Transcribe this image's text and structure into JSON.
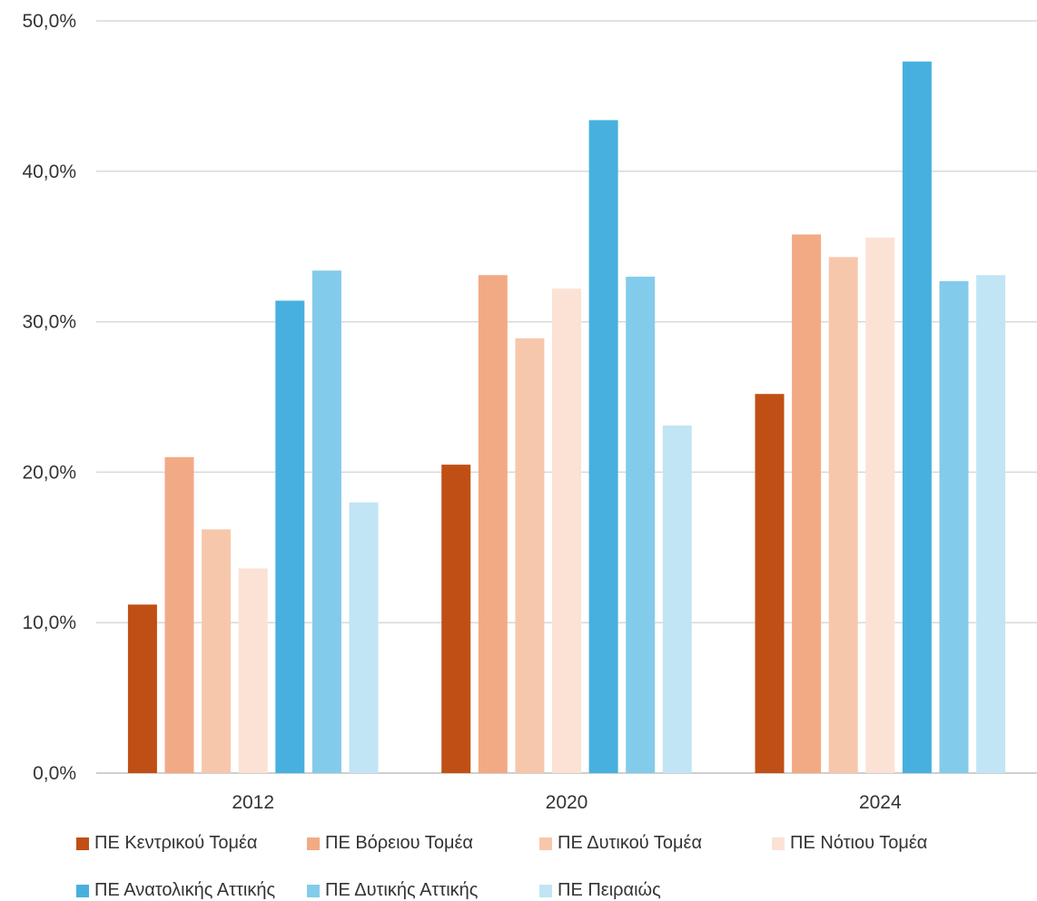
{
  "chart_data": {
    "type": "bar",
    "title": "",
    "xlabel": "",
    "ylabel": "",
    "categories": [
      "2012",
      "2020",
      "2024"
    ],
    "ylim": [
      0,
      50
    ],
    "yticks": [
      "0,0%",
      "10,0%",
      "20,0%",
      "30,0%",
      "40,0%",
      "50,0%"
    ],
    "grid": true,
    "legend_position": "bottom",
    "series": [
      {
        "name": "ΠΕ Κεντρικού Τομέα",
        "color": "#C04F15",
        "values": [
          11.2,
          20.5,
          25.2
        ]
      },
      {
        "name": "ΠΕ Βόρειου Τομέα",
        "color": "#F2AA84",
        "values": [
          21.0,
          33.1,
          35.8
        ]
      },
      {
        "name": "ΠΕ Δυτικού Τομέα",
        "color": "#F7C7AC",
        "values": [
          16.2,
          28.9,
          34.3
        ]
      },
      {
        "name": "ΠΕ Νότιου Τομέα",
        "color": "#FBE2D5",
        "values": [
          13.6,
          32.2,
          35.6
        ]
      },
      {
        "name": "ΠΕ Ανατολικής Αττικής",
        "color": "#47B0DF",
        "values": [
          31.4,
          43.4,
          47.3
        ]
      },
      {
        "name": "ΠΕ Δυτικής Αττικής",
        "color": "#83CBEB",
        "values": [
          33.4,
          33.0,
          32.7
        ]
      },
      {
        "name": "ΠΕ Πειραιώς",
        "color": "#C1E5F5",
        "values": [
          18.0,
          23.1,
          33.1
        ]
      }
    ]
  }
}
